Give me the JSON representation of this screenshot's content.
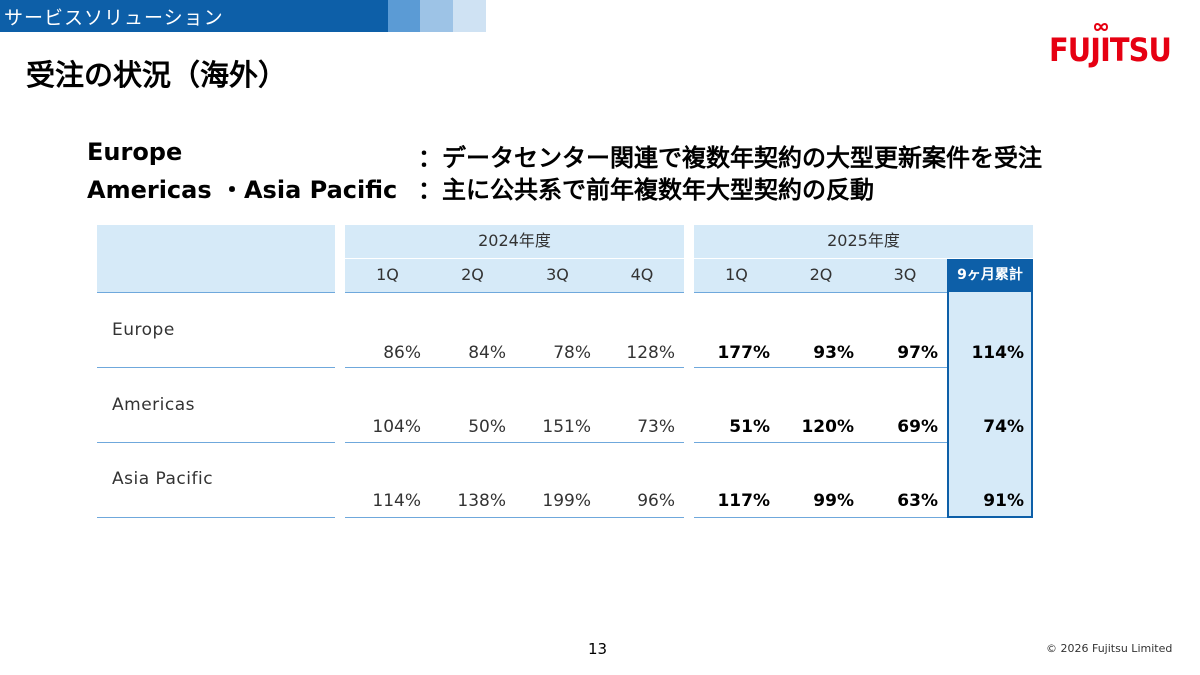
{
  "header": {
    "section": "サービスソリューション",
    "title": "受注の状況（海外）",
    "logo": "FUJITSU",
    "colors": {
      "band": "#0d5fa8",
      "logo": "#e60012",
      "table_header": "#d6eaf8"
    }
  },
  "summary": [
    {
      "region": "Europe",
      "text": "：データセンター関連で複数年契約の大型更新案件を受注"
    },
    {
      "region": "Americas ・Asia Pacific",
      "text": "：主に公共系で前年複数年大型契約の反動"
    }
  ],
  "table": {
    "year_2024": "2024年度",
    "year_2025": "2025年度",
    "q2024": [
      "1Q",
      "2Q",
      "3Q",
      "4Q"
    ],
    "q2025": [
      "1Q",
      "2Q",
      "3Q"
    ],
    "cumulative": "9ヶ月累計",
    "rows": [
      {
        "name": "Europe",
        "v2024": [
          "86%",
          "84%",
          "78%",
          "128%"
        ],
        "v2025": [
          "177%",
          "93%",
          "97%"
        ],
        "cum": "114%"
      },
      {
        "name": "Americas",
        "v2024": [
          "104%",
          "50%",
          "151%",
          "73%"
        ],
        "v2025": [
          "51%",
          "120%",
          "69%"
        ],
        "cum": "74%"
      },
      {
        "name": "Asia Pacific",
        "v2024": [
          "114%",
          "138%",
          "199%",
          "96%"
        ],
        "v2025": [
          "117%",
          "99%",
          "63%"
        ],
        "cum": "91%"
      }
    ]
  },
  "footer": {
    "page": "13",
    "copyright": "© 2026 Fujitsu Limited"
  }
}
